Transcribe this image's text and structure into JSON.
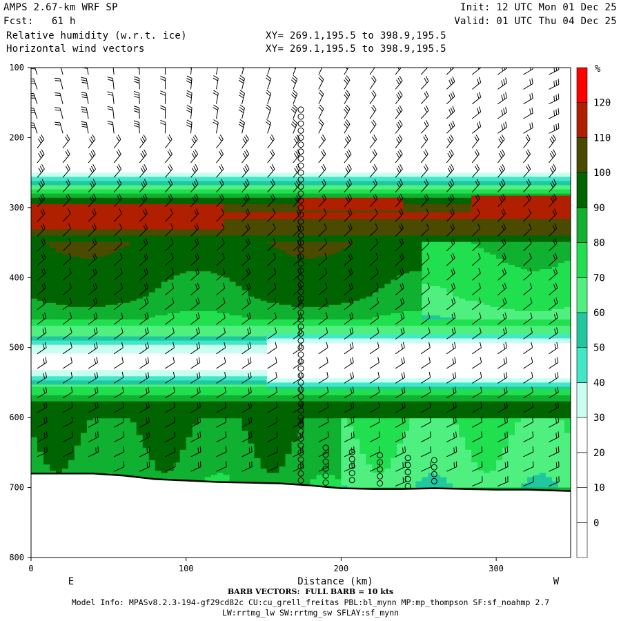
{
  "header": {
    "line1_left": "AMPS 2.67-km WRF SP",
    "line2_left": "Fcst:   61 h",
    "line3_left": "Relative humidity (w.r.t. ice)",
    "line4_left": "Horizontal wind vectors",
    "line1_right": "Init: 12 UTC Mon 01 Dec 25",
    "line2_right": "Valid: 01 UTC Thu 04 Dec 25",
    "xy1": "XY= 269.1,195.5 to 398.9,195.5",
    "xy2": "XY= 269.1,195.5 to 398.9,195.5"
  },
  "footer": {
    "barb_note": "BARB VECTORS:  FULL BARB = 10 kts",
    "model_info": "Model Info: MPASv8.2.3-194-gf29cd82c CU:cu_grell_freitas PBL:bl_mynn MP:mp_thompson SF:sf_noahmp 2.7",
    "model_info2": "LW:rrtmg_lw SW:rrtmg_sw SFLAY:sf_mynn"
  },
  "chart_data": {
    "type": "heatmap",
    "title": "Relative humidity (w.r.t. ice)",
    "xlabel": "Distance (km)",
    "ylabel": "",
    "xlim": [
      0,
      348
    ],
    "ylim": [
      800,
      100
    ],
    "x_ticks": [
      0,
      100,
      200,
      300
    ],
    "x_tick_labels": [
      "0",
      "100",
      "200",
      "300"
    ],
    "y_ticks": [
      100,
      200,
      300,
      400,
      500,
      600,
      700,
      800
    ],
    "y_tick_labels": [
      "100",
      "200",
      "300",
      "400",
      "500",
      "600",
      "700",
      "800"
    ],
    "x_end_labels": {
      "left": "E",
      "right": "W"
    },
    "colorbar": {
      "unit": "%",
      "levels": [
        -10,
        0,
        10,
        20,
        30,
        40,
        50,
        60,
        70,
        80,
        90,
        100,
        110,
        120,
        130
      ],
      "tick_labels": [
        "0",
        "10",
        "20",
        "30",
        "40",
        "50",
        "60",
        "70",
        "80",
        "90",
        "100",
        "110",
        "120"
      ],
      "colors": [
        "#ffffff",
        "#ffffff",
        "#ffffff",
        "#ffffff",
        "#c8fff0",
        "#40e8c8",
        "#20c8a0",
        "#50f080",
        "#20e050",
        "#10b030",
        "#006400",
        "#4a4a00",
        "#b02000",
        "#ff0000"
      ]
    },
    "rh_profile_pressure": [
      100,
      240,
      255,
      270,
      290,
      310,
      340,
      380,
      430,
      460,
      480,
      500,
      520,
      540,
      560,
      580,
      600,
      640,
      680,
      700
    ],
    "rh_profile_percent": [
      0,
      15,
      35,
      65,
      95,
      112,
      100,
      95,
      90,
      80,
      60,
      30,
      15,
      30,
      70,
      95,
      92,
      88,
      85,
      82
    ],
    "red_patches": [
      {
        "x": [
          0,
          125
        ],
        "p": [
          296,
          330
        ]
      },
      {
        "x": [
          172,
          240
        ],
        "p": [
          285,
          305
        ]
      },
      {
        "x": [
          285,
          348
        ],
        "p": [
          282,
          310
        ]
      }
    ],
    "terrain": {
      "x": [
        0,
        20,
        40,
        60,
        80,
        100,
        120,
        140,
        160,
        180,
        200,
        220,
        240,
        260,
        280,
        300,
        320,
        348
      ],
      "p": [
        680,
        680,
        680,
        683,
        688,
        690,
        692,
        693,
        694,
        697,
        701,
        702,
        702,
        701,
        702,
        703,
        703,
        705
      ]
    },
    "calm_circles_x": [
      174,
      190,
      207,
      225,
      243,
      260
    ],
    "barb_legend": "FULL BARB = 10 kts"
  }
}
